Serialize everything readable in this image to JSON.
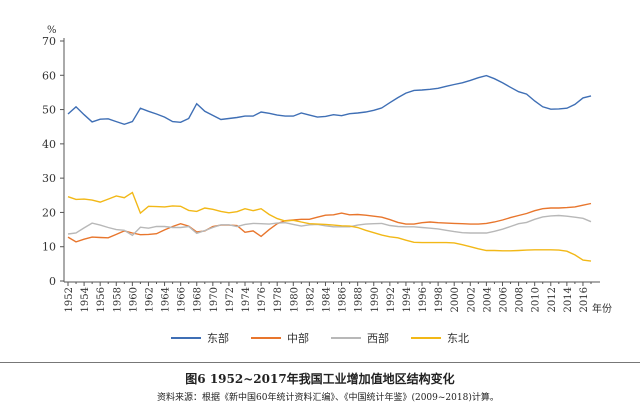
{
  "chart_data": {
    "type": "line",
    "title": "图6  1952~2017年我国工业增加值地区结构变化",
    "source": "资料来源：根据《新中国60年统计资料汇编》、《中国统计年鉴》(2009~2018)计算。",
    "ylabel": "%",
    "xlabel": "年份",
    "ylim": [
      0,
      70
    ],
    "yticks": [
      "0",
      "10",
      "20",
      "30",
      "40",
      "50",
      "60",
      "70"
    ],
    "xlim": [
      1952,
      2017
    ],
    "xticks": [
      "1952",
      "1954",
      "1956",
      "1958",
      "1960",
      "1962",
      "1964",
      "1966",
      "1968",
      "1970",
      "1972",
      "1974",
      "1976",
      "1978",
      "1980",
      "1982",
      "1984",
      "1986",
      "1988",
      "1990",
      "1992",
      "1994",
      "1996",
      "1998",
      "2000",
      "2002",
      "2004",
      "2006",
      "2008",
      "2010",
      "2012",
      "2014",
      "2016"
    ],
    "grid": false,
    "legend_placement": "bottom",
    "series": [
      {
        "name": "东部",
        "color": "#3f6fb5",
        "values": [
          48.7,
          50.8,
          48.5,
          46.4,
          47.2,
          47.3,
          46.5,
          45.7,
          46.5,
          50.4,
          49.5,
          48.7,
          47.8,
          46.5,
          46.3,
          47.4,
          51.7,
          49.5,
          48.3,
          47.1,
          47.4,
          47.7,
          48.1,
          48.1,
          49.3,
          48.9,
          48.4,
          48.1,
          48.1,
          49.0,
          48.4,
          47.8,
          48.0,
          48.5,
          48.2,
          48.8,
          49.0,
          49.3,
          49.8,
          50.5,
          52.0,
          53.5,
          54.8,
          55.6,
          55.7,
          55.9,
          56.2,
          56.8,
          57.3,
          57.8,
          58.5,
          59.3,
          59.9,
          59.0,
          57.8,
          56.5,
          55.2,
          54.5,
          52.5,
          50.8,
          50.1,
          50.2,
          50.4,
          51.5,
          53.4,
          54.0
        ]
      },
      {
        "name": "中部",
        "color": "#e8762d",
        "values": [
          12.8,
          11.4,
          12.2,
          12.8,
          12.7,
          12.6,
          13.6,
          14.6,
          14.0,
          13.5,
          13.6,
          13.8,
          14.9,
          15.9,
          16.7,
          16.0,
          14.3,
          14.6,
          15.9,
          16.3,
          16.3,
          16.2,
          14.2,
          14.6,
          13.0,
          15.0,
          16.7,
          17.6,
          17.8,
          18.0,
          18.0,
          18.6,
          19.2,
          19.3,
          19.8,
          19.3,
          19.4,
          19.2,
          18.9,
          18.6,
          17.9,
          17.1,
          16.6,
          16.6,
          17.0,
          17.2,
          17.0,
          16.9,
          16.8,
          16.7,
          16.6,
          16.6,
          16.8,
          17.2,
          17.8,
          18.5,
          19.1,
          19.7,
          20.5,
          21.1,
          21.3,
          21.3,
          21.4,
          21.6,
          22.1,
          22.6
        ]
      },
      {
        "name": "西部",
        "color": "#b8b8b8",
        "values": [
          13.7,
          14.0,
          15.5,
          16.9,
          16.3,
          15.6,
          15.0,
          14.8,
          13.3,
          15.7,
          15.4,
          15.9,
          15.9,
          15.6,
          15.6,
          15.9,
          13.9,
          14.7,
          15.6,
          16.4,
          16.4,
          15.9,
          16.5,
          16.8,
          16.7,
          16.6,
          16.9,
          17.0,
          16.5,
          16.0,
          16.4,
          16.5,
          16.1,
          15.8,
          15.8,
          15.8,
          16.3,
          16.6,
          16.7,
          16.8,
          16.2,
          15.9,
          15.8,
          15.8,
          15.6,
          15.4,
          15.2,
          14.8,
          14.4,
          14.1,
          14.0,
          14.0,
          14.0,
          14.5,
          15.1,
          15.9,
          16.7,
          17.1,
          18.0,
          18.7,
          19.0,
          19.1,
          18.9,
          18.6,
          18.3,
          17.3
        ]
      },
      {
        "name": "东北",
        "color": "#f2b817",
        "values": [
          24.6,
          23.8,
          23.9,
          23.6,
          23.0,
          23.9,
          24.8,
          24.3,
          25.8,
          19.8,
          21.8,
          21.7,
          21.6,
          21.9,
          21.8,
          20.6,
          20.3,
          21.3,
          20.9,
          20.3,
          19.9,
          20.2,
          21.1,
          20.5,
          21.1,
          19.4,
          18.2,
          17.5,
          17.7,
          17.2,
          16.7,
          16.6,
          16.5,
          16.3,
          16.1,
          16.0,
          15.6,
          14.8,
          14.1,
          13.4,
          12.9,
          12.6,
          11.9,
          11.3,
          11.2,
          11.2,
          11.2,
          11.2,
          11.1,
          10.6,
          10.0,
          9.4,
          8.9,
          8.9,
          8.8,
          8.8,
          8.9,
          9.0,
          9.1,
          9.1,
          9.1,
          9.0,
          8.7,
          7.6,
          6.1,
          5.8
        ]
      }
    ]
  }
}
